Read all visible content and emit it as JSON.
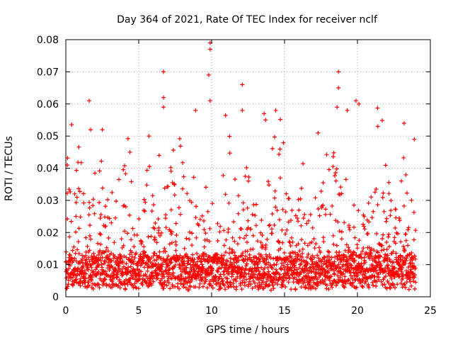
{
  "chart_data": {
    "type": "scatter",
    "title": "Day 364 of 2021, Rate Of TEC Index for receiver nclf",
    "xlabel": "GPS time / hours",
    "ylabel": "ROTI / TECUs",
    "xlim": [
      0,
      25
    ],
    "ylim": [
      0,
      0.08
    ],
    "grid": true,
    "marker": "+",
    "xticks": [
      0,
      5,
      10,
      15,
      20,
      25
    ],
    "xtick_labels": [
      "0",
      "5",
      "10",
      "15",
      "20",
      "25"
    ],
    "yticks": [
      0,
      0.01,
      0.02,
      0.03,
      0.04,
      0.05,
      0.06,
      0.07,
      0.08
    ],
    "ytick_labels": [
      "0",
      "0.01",
      "0.02",
      "0.03",
      "0.04",
      "0.05",
      "0.06",
      "0.07",
      "0.08"
    ],
    "colors": {
      "series": "#ff0000",
      "grid": "#a0a0a0",
      "axis": "#000000"
    },
    "series": [
      {
        "name": "ROTI",
        "x_range": [
          0,
          24
        ],
        "baseline_range": [
          0.002,
          0.012
        ],
        "notable_points": [
          {
            "x": 0.1,
            "y": 0.041
          },
          {
            "x": 1.6,
            "y": 0.061
          },
          {
            "x": 1.7,
            "y": 0.052
          },
          {
            "x": 2.5,
            "y": 0.052
          },
          {
            "x": 4.4,
            "y": 0.045
          },
          {
            "x": 5.7,
            "y": 0.05
          },
          {
            "x": 6.4,
            "y": 0.044
          },
          {
            "x": 6.7,
            "y": 0.07
          },
          {
            "x": 6.7,
            "y": 0.062
          },
          {
            "x": 6.7,
            "y": 0.059
          },
          {
            "x": 8.9,
            "y": 0.058
          },
          {
            "x": 9.9,
            "y": 0.079
          },
          {
            "x": 9.9,
            "y": 0.077
          },
          {
            "x": 9.8,
            "y": 0.069
          },
          {
            "x": 9.9,
            "y": 0.061
          },
          {
            "x": 12.1,
            "y": 0.066
          },
          {
            "x": 12.1,
            "y": 0.058
          },
          {
            "x": 13.6,
            "y": 0.057
          },
          {
            "x": 13.7,
            "y": 0.055
          },
          {
            "x": 14.4,
            "y": 0.058
          },
          {
            "x": 17.3,
            "y": 0.051
          },
          {
            "x": 18.7,
            "y": 0.07
          },
          {
            "x": 18.7,
            "y": 0.065
          },
          {
            "x": 18.6,
            "y": 0.059
          },
          {
            "x": 19.3,
            "y": 0.058
          },
          {
            "x": 19.9,
            "y": 0.061
          },
          {
            "x": 20.1,
            "y": 0.06
          },
          {
            "x": 21.4,
            "y": 0.053
          },
          {
            "x": 23.2,
            "y": 0.054
          },
          {
            "x": 23.9,
            "y": 0.049
          }
        ]
      }
    ]
  }
}
